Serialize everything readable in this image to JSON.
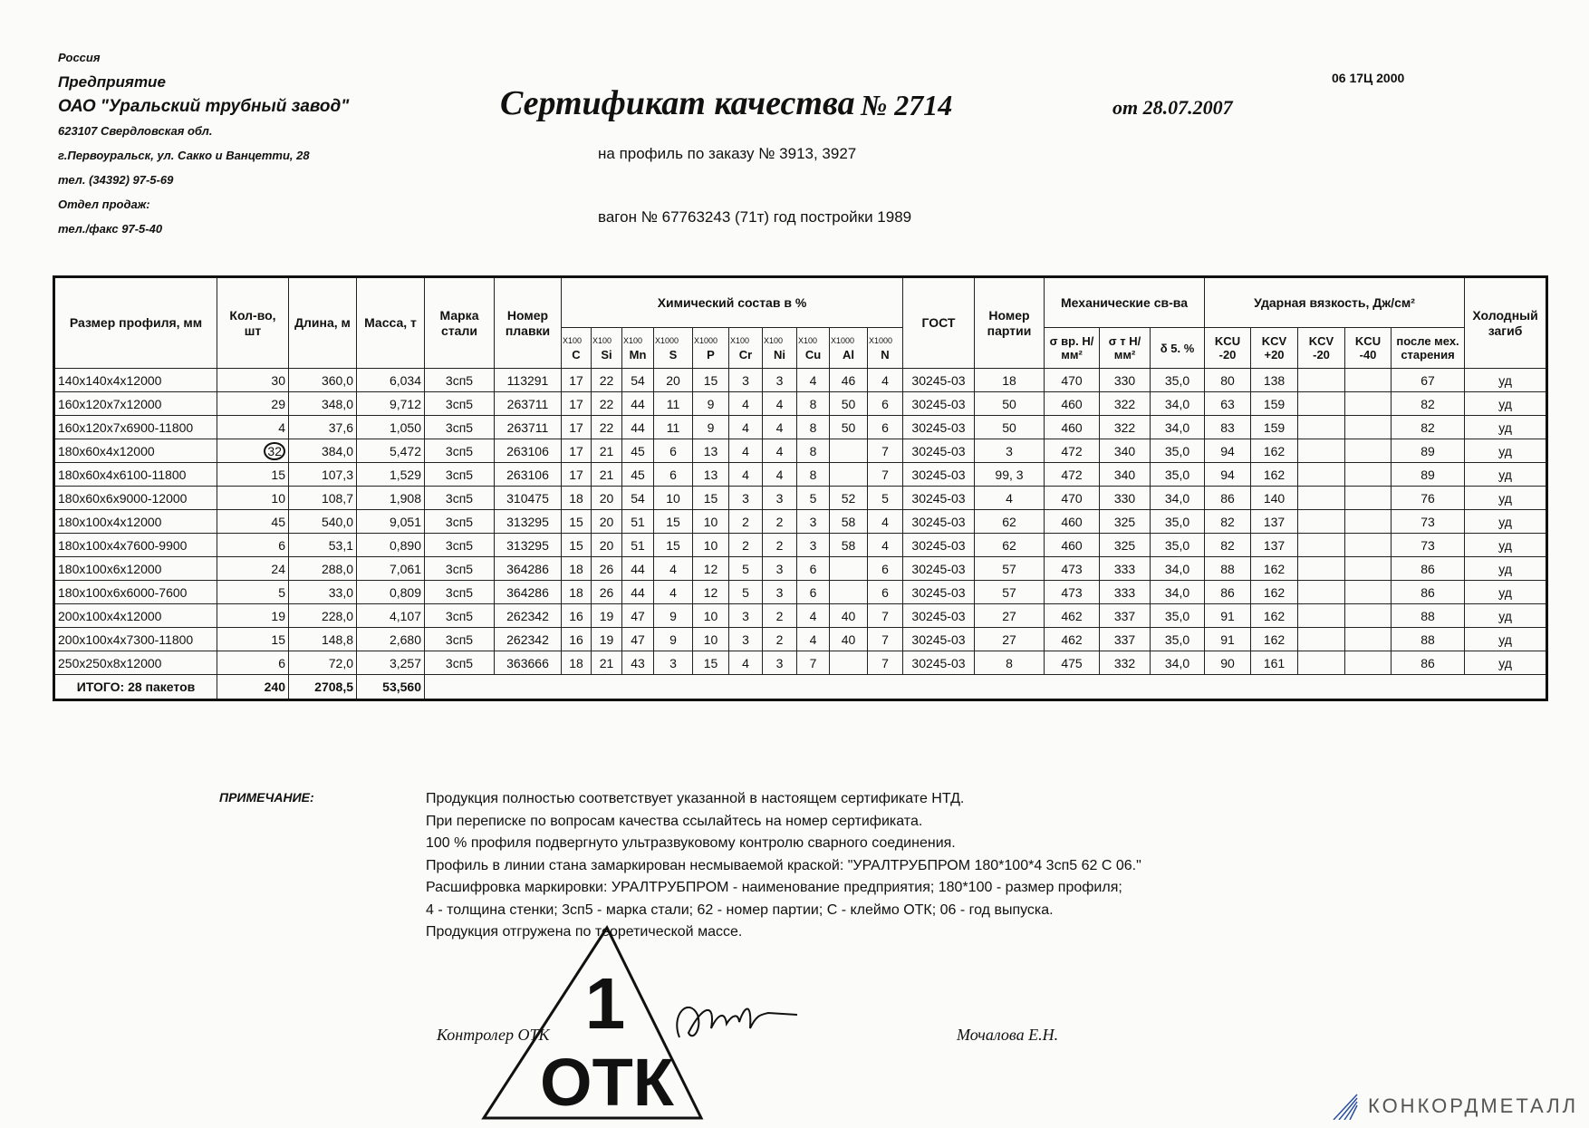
{
  "company": {
    "country": "Россия",
    "label": "Предприятие",
    "name": "ОАО \"Уральский трубный завод\"",
    "address1": "623107 Свердловская обл.",
    "address2": "г.Первоуральск, ул. Сакко и Ванцетти, 28",
    "phone": "тел. (34392) 97-5-69",
    "sales_dept": "Отдел продаж:",
    "sales_phone": "тел./факс 97-5-40"
  },
  "certificate": {
    "title": "Сертификат качества",
    "number": "№ 2714",
    "date": "от 28.07.2007",
    "code": "06 17Ц 2000",
    "order": "на профиль по заказу № 3913, 3927",
    "wagon": "вагон № 67763243 (71т) год постройки 1989"
  },
  "table": {
    "headers": {
      "size": "Размер профиля, мм",
      "qty": "Кол-во, шт",
      "length": "Длина, м",
      "mass": "Масса, т",
      "steel": "Марка стали",
      "heat": "Номер плавки",
      "chem": "Химический состав в %",
      "gost": "ГОСТ",
      "batch": "Номер партии",
      "mech": "Механические св-ва",
      "impact": "Ударная вязкость, Дж/см²",
      "bend": "Холодный загиб"
    },
    "chem_cols": [
      {
        "mul": "X100",
        "el": "C"
      },
      {
        "mul": "X100",
        "el": "Si"
      },
      {
        "mul": "X100",
        "el": "Mn"
      },
      {
        "mul": "X1000",
        "el": "S"
      },
      {
        "mul": "X1000",
        "el": "P"
      },
      {
        "mul": "X100",
        "el": "Cr"
      },
      {
        "mul": "X100",
        "el": "Ni"
      },
      {
        "mul": "X100",
        "el": "Cu"
      },
      {
        "mul": "X1000",
        "el": "Al"
      },
      {
        "mul": "X1000",
        "el": "N"
      }
    ],
    "mech_cols": [
      "σ вр. Н/мм²",
      "σ т Н/мм²",
      "δ 5. %"
    ],
    "impact_cols": [
      "KCU -20",
      "KCV +20",
      "KCV -20",
      "KCU -40",
      "после мех. старения"
    ],
    "rows": [
      [
        "140x140x4x12000",
        "30",
        "360,0",
        "6,034",
        "3сп5",
        "113291",
        "17",
        "22",
        "54",
        "20",
        "15",
        "3",
        "3",
        "4",
        "46",
        "4",
        "30245-03",
        "18",
        "470",
        "330",
        "35,0",
        "80",
        "138",
        "",
        "",
        "67",
        "уд"
      ],
      [
        "160x120x7x12000",
        "29",
        "348,0",
        "9,712",
        "3сп5",
        "263711",
        "17",
        "22",
        "44",
        "11",
        "9",
        "4",
        "4",
        "8",
        "50",
        "6",
        "30245-03",
        "50",
        "460",
        "322",
        "34,0",
        "63",
        "159",
        "",
        "",
        "82",
        "уд"
      ],
      [
        "160x120x7x6900-11800",
        "4",
        "37,6",
        "1,050",
        "3сп5",
        "263711",
        "17",
        "22",
        "44",
        "11",
        "9",
        "4",
        "4",
        "8",
        "50",
        "6",
        "30245-03",
        "50",
        "460",
        "322",
        "34,0",
        "83",
        "159",
        "",
        "",
        "82",
        "уд"
      ],
      [
        "180x60x4x12000",
        "32",
        "384,0",
        "5,472",
        "3сп5",
        "263106",
        "17",
        "21",
        "45",
        "6",
        "13",
        "4",
        "4",
        "8",
        "",
        "7",
        "30245-03",
        "3",
        "472",
        "340",
        "35,0",
        "94",
        "162",
        "",
        "",
        "89",
        "уд"
      ],
      [
        "180x60x4x6100-11800",
        "15",
        "107,3",
        "1,529",
        "3сп5",
        "263106",
        "17",
        "21",
        "45",
        "6",
        "13",
        "4",
        "4",
        "8",
        "",
        "7",
        "30245-03",
        "99, 3",
        "472",
        "340",
        "35,0",
        "94",
        "162",
        "",
        "",
        "89",
        "уд"
      ],
      [
        "180x60x6x9000-12000",
        "10",
        "108,7",
        "1,908",
        "3сп5",
        "310475",
        "18",
        "20",
        "54",
        "10",
        "15",
        "3",
        "3",
        "5",
        "52",
        "5",
        "30245-03",
        "4",
        "470",
        "330",
        "34,0",
        "86",
        "140",
        "",
        "",
        "76",
        "уд"
      ],
      [
        "180x100x4x12000",
        "45",
        "540,0",
        "9,051",
        "3сп5",
        "313295",
        "15",
        "20",
        "51",
        "15",
        "10",
        "2",
        "2",
        "3",
        "58",
        "4",
        "30245-03",
        "62",
        "460",
        "325",
        "35,0",
        "82",
        "137",
        "",
        "",
        "73",
        "уд"
      ],
      [
        "180x100x4x7600-9900",
        "6",
        "53,1",
        "0,890",
        "3сп5",
        "313295",
        "15",
        "20",
        "51",
        "15",
        "10",
        "2",
        "2",
        "3",
        "58",
        "4",
        "30245-03",
        "62",
        "460",
        "325",
        "35,0",
        "82",
        "137",
        "",
        "",
        "73",
        "уд"
      ],
      [
        "180x100x6x12000",
        "24",
        "288,0",
        "7,061",
        "3сп5",
        "364286",
        "18",
        "26",
        "44",
        "4",
        "12",
        "5",
        "3",
        "6",
        "",
        "6",
        "30245-03",
        "57",
        "473",
        "333",
        "34,0",
        "88",
        "162",
        "",
        "",
        "86",
        "уд"
      ],
      [
        "180x100x6x6000-7600",
        "5",
        "33,0",
        "0,809",
        "3сп5",
        "364286",
        "18",
        "26",
        "44",
        "4",
        "12",
        "5",
        "3",
        "6",
        "",
        "6",
        "30245-03",
        "57",
        "473",
        "333",
        "34,0",
        "86",
        "162",
        "",
        "",
        "86",
        "уд"
      ],
      [
        "200x100x4x12000",
        "19",
        "228,0",
        "4,107",
        "3сп5",
        "262342",
        "16",
        "19",
        "47",
        "9",
        "10",
        "3",
        "2",
        "4",
        "40",
        "7",
        "30245-03",
        "27",
        "462",
        "337",
        "35,0",
        "91",
        "162",
        "",
        "",
        "88",
        "уд"
      ],
      [
        "200x100x4x7300-11800",
        "15",
        "148,8",
        "2,680",
        "3сп5",
        "262342",
        "16",
        "19",
        "47",
        "9",
        "10",
        "3",
        "2",
        "4",
        "40",
        "7",
        "30245-03",
        "27",
        "462",
        "337",
        "35,0",
        "91",
        "162",
        "",
        "",
        "88",
        "уд"
      ],
      [
        "250x250x8x12000",
        "6",
        "72,0",
        "3,257",
        "3сп5",
        "363666",
        "18",
        "21",
        "43",
        "3",
        "15",
        "4",
        "3",
        "7",
        "",
        "7",
        "30245-03",
        "8",
        "475",
        "332",
        "34,0",
        "90",
        "161",
        "",
        "",
        "86",
        "уд"
      ]
    ],
    "total": {
      "label": "ИТОГО: 28 пакетов",
      "qty": "240",
      "length": "2708,5",
      "mass": "53,560"
    }
  },
  "notes": {
    "label": "ПРИМЕЧАНИЕ:",
    "lines": [
      "Продукция полностью соответствует указанной в настоящем сертификате НТД.",
      "При переписке по вопросам качества ссылайтесь на номер сертификата.",
      "100 % профиля подвергнуто ультразвуковому контролю сварного соединения.",
      "Профиль в линии стана замаркирован несмываемой краской: \"УРАЛТРУБПРОМ  180*100*4  3сп5  62  С  06.\"",
      "Расшифровка маркировки: УРАЛТРУБПРОМ - наименование предприятия; 180*100 - размер профиля;",
      "4 - толщина стенки; 3сп5 - марка стали; 62 - номер партии; С - клеймо ОТК; 06 - год выпуска.",
      "Продукция отгружена по теоретической массе."
    ]
  },
  "signature": {
    "role": "Контролер ОТК",
    "name": "Мочалова Е.Н."
  },
  "stamp": {
    "number": "1",
    "text": "ОТК"
  },
  "watermark": {
    "text": "КОНКОРДМЕТАЛЛ",
    "color": "#2a4fa0"
  }
}
